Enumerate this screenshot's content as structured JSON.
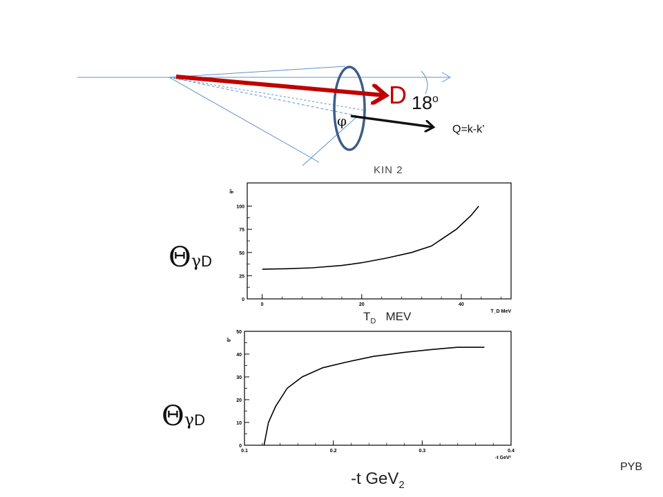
{
  "diagram": {
    "particle_label": "D",
    "angle_value": "18",
    "angle_unit": "o",
    "phi_label": "φ",
    "q_label": "Q=k-k’",
    "colors": {
      "deuteron_arrow": "#c00000",
      "q_arrow": "#111111",
      "ring": "#3d5a8c",
      "lines": "#5b8fd1"
    }
  },
  "kin_label": "KIN 2",
  "theta_symbol": "Θ",
  "gamma_symbol": "γ",
  "d_subscript": "D",
  "td_label": {
    "t": "T",
    "sub": "D",
    "unit": "MEV"
  },
  "t_label": {
    "text": "-t  GeV",
    "sub": "2"
  },
  "credit": "PYB",
  "chart_data": [
    {
      "type": "line",
      "title": "",
      "ylabel": "θ°",
      "xlabel": "T_D MeV",
      "xlim": [
        -3,
        50
      ],
      "ylim": [
        0,
        125
      ],
      "xticks": [
        0,
        20,
        40
      ],
      "yticks": [
        0,
        25,
        50,
        75,
        100
      ],
      "series": [
        {
          "x": [
            0,
            5,
            10,
            16,
            20,
            25,
            30,
            34,
            39,
            42,
            43.5
          ],
          "y": [
            32,
            32.5,
            33.5,
            36,
            39,
            44,
            50,
            57,
            75,
            90,
            100
          ]
        }
      ]
    },
    {
      "type": "line",
      "title": "",
      "ylabel": "θ°",
      "xlabel": "-t GeV²",
      "xlim": [
        0.1,
        0.4
      ],
      "ylim": [
        0,
        50
      ],
      "xticks": [
        0.1,
        0.2,
        0.3,
        0.4
      ],
      "yticks": [
        0,
        10,
        20,
        30,
        40,
        50
      ],
      "series": [
        {
          "x": [
            0.122,
            0.127,
            0.135,
            0.148,
            0.165,
            0.188,
            0.215,
            0.245,
            0.28,
            0.31,
            0.34,
            0.37
          ],
          "y": [
            0,
            10,
            17,
            25,
            30,
            34,
            36.5,
            39,
            40.8,
            42,
            43,
            43
          ]
        }
      ]
    }
  ]
}
